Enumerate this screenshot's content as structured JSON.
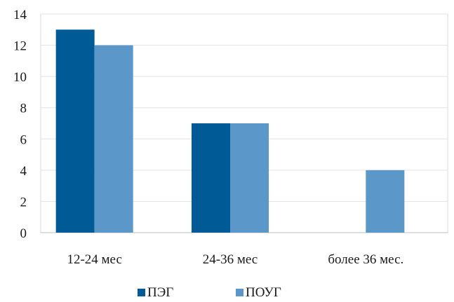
{
  "chart_data": {
    "type": "bar",
    "categories": [
      "12-24 мес",
      "24-36 мес",
      "более 36 мес."
    ],
    "series": [
      {
        "name": "ПЭГ",
        "values": [
          13,
          7,
          0
        ],
        "color": "#005a96"
      },
      {
        "name": "ПОУГ",
        "values": [
          12,
          7,
          4
        ],
        "color": "#5b98c9"
      }
    ],
    "ylim": [
      0,
      14
    ],
    "yticks": [
      0,
      2,
      4,
      6,
      8,
      10,
      12,
      14
    ],
    "grid": true,
    "legend_position": "bottom",
    "title": "",
    "xlabel": "",
    "ylabel": ""
  }
}
